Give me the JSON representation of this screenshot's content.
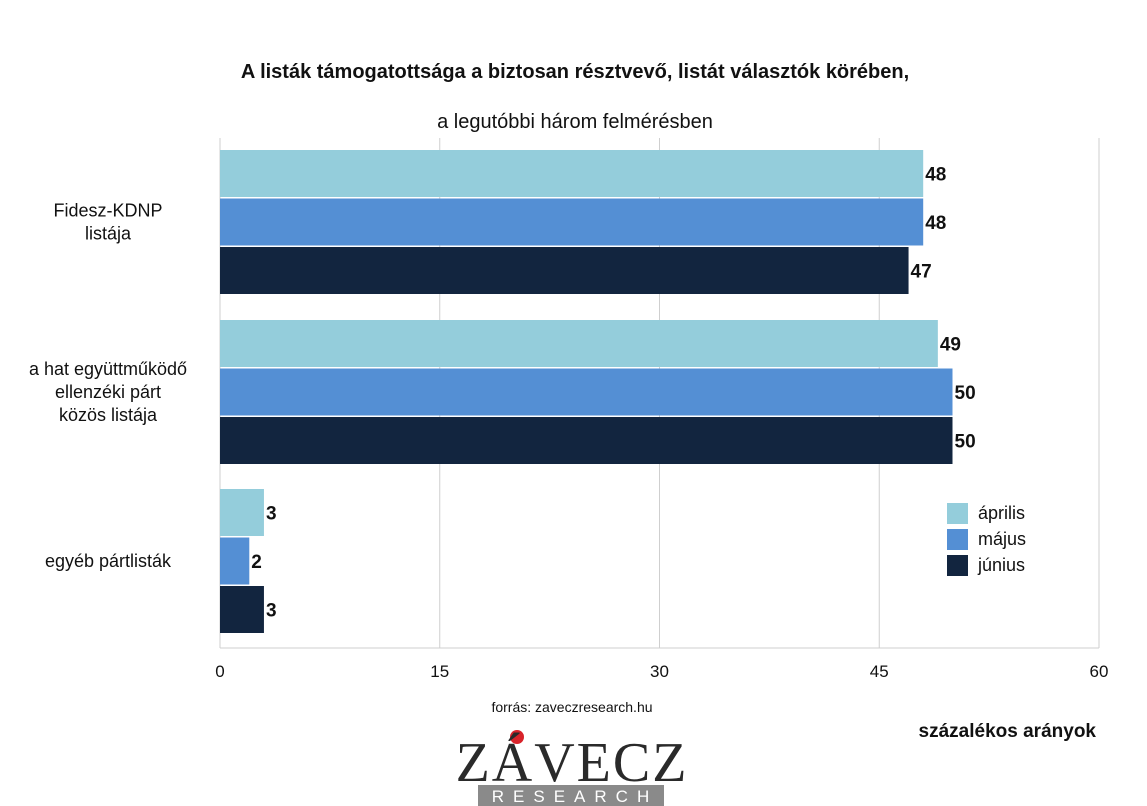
{
  "chart_data": {
    "type": "bar",
    "orientation": "horizontal",
    "title": "A listák támogatottsága a biztosan résztvevő, listát választók körében,",
    "subtitle": "a legutóbbi három felmérésben",
    "categories": [
      [
        "Fidesz-KDNP",
        "listája"
      ],
      [
        "a hat együttműködő",
        "ellenzéki párt",
        "közös listája"
      ],
      [
        "egyéb pártlisták"
      ]
    ],
    "series": [
      {
        "name": "április",
        "values": [
          48,
          49,
          3
        ],
        "color": "#94cddb"
      },
      {
        "name": "május",
        "values": [
          48,
          50,
          2
        ],
        "color": "#548fd4"
      },
      {
        "name": "június",
        "values": [
          47,
          50,
          3
        ],
        "color": "#12253f"
      }
    ],
    "xlim": [
      0,
      60
    ],
    "ticks": [
      0,
      15,
      30,
      45,
      60
    ],
    "grid": true,
    "legend": "right-bottom",
    "xlabel": "százalékos arányok",
    "source": "forrás: zaveczresearch.hu"
  },
  "logo": {
    "main": "ZÁVECZ",
    "sub": "RESEARCH",
    "accent_color": "#d8232a"
  }
}
